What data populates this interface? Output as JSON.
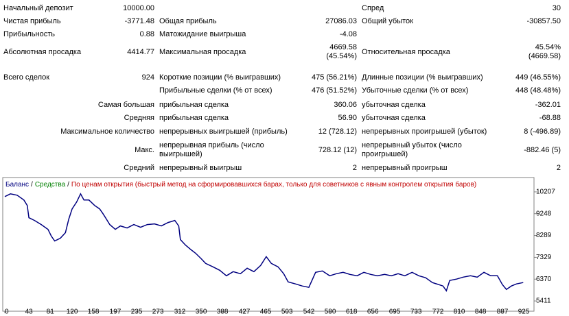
{
  "stats": {
    "rows": [
      {
        "l1": "Начальный депозит",
        "v1": "10000.00",
        "l3": "Спред",
        "v3": "30"
      },
      {
        "l1": "Чистая прибыль",
        "v1": "-3771.48",
        "l2": "Общая прибыль",
        "v2": "27086.03",
        "l3": "Общий убыток",
        "v3": "-30857.50"
      },
      {
        "l1": "Прибыльность",
        "v1": "0.88",
        "l2": "Матожидание выигрыша",
        "v2": "-4.08"
      },
      {
        "l1": "Абсолютная просадка",
        "v1": "4414.77",
        "l2": "Максимальная просадка",
        "v2": "4669.58\n(45.54%)",
        "l3": "Относительная просадка",
        "v3": "45.54%\n(4669.58)"
      },
      {
        "l1": "Всего сделок",
        "v1": "924",
        "l2": "Короткие позиции (% выигравших)",
        "v2": "475 (56.21%)",
        "l3": "Длинные позиции (% выигравших)",
        "v3": "449 (46.55%)"
      },
      {
        "l2": "Прибыльные сделки (% от всех)",
        "v2": "476 (51.52%)",
        "l3": "Убыточные сделки (% от всех)",
        "v3": "448 (48.48%)"
      },
      {
        "l1": "Самая большая",
        "l2": "прибыльная сделка",
        "v2": "360.06",
        "l3": "убыточная сделка",
        "v3": "-362.01"
      },
      {
        "l1": "Средняя",
        "l2": "прибыльная сделка",
        "v2": "56.90",
        "l3": "убыточная сделка",
        "v3": "-68.88"
      },
      {
        "l1": "Максимальное количество",
        "l2": "непрерывных выигрышей (прибыль)",
        "v2": "12 (728.12)",
        "l3": "непрерывных проигрышей (убыток)",
        "v3": "8 (-496.89)"
      },
      {
        "l1": "Макс.",
        "l2": "непрерывная прибыль (число выигрышей)",
        "v2": "728.12 (12)",
        "l3": "непрерывный убыток (число проигрышей)",
        "v3": "-882.46 (5)"
      },
      {
        "l1": "Средний",
        "l2": "непрерывный выигрыш",
        "v2": "2",
        "l3": "непрерывный проигрыш",
        "v3": "2"
      }
    ]
  },
  "chart_data": {
    "type": "line",
    "separator": "/",
    "equity_label": "Средства",
    "mode": "По ценам открытия (быстрый метод на сформировавшихся барах, только для советников с явным контролем открытия баров)",
    "x": [
      0,
      10,
      22,
      34,
      40,
      43,
      53,
      65,
      77,
      83,
      89,
      99,
      108,
      114,
      120,
      128,
      135,
      141,
      150,
      160,
      169,
      175,
      181,
      187,
      197,
      206,
      218,
      230,
      242,
      254,
      267,
      279,
      291,
      303,
      310,
      313,
      322,
      332,
      340,
      350,
      358,
      371,
      383,
      395,
      407,
      420,
      432,
      444,
      456,
      466,
      475,
      487,
      497,
      505,
      518,
      530,
      542,
      554,
      566,
      579,
      591,
      603,
      615,
      628,
      640,
      652,
      664,
      677,
      689,
      701,
      713,
      726,
      738,
      750,
      762,
      781,
      787,
      793,
      805,
      817,
      830,
      842,
      854,
      866,
      878,
      887,
      894,
      903,
      912,
      924
    ],
    "series": [
      {
        "name": "Баланс",
        "color": "#000080",
        "values": [
          10000,
          10120,
          10060,
          9850,
          9610,
          9070,
          8950,
          8770,
          8560,
          8260,
          8050,
          8170,
          8410,
          9010,
          9460,
          9760,
          10120,
          9850,
          9850,
          9610,
          9460,
          9250,
          9010,
          8770,
          8560,
          8710,
          8620,
          8770,
          8650,
          8770,
          8800,
          8710,
          8860,
          8950,
          8710,
          8110,
          7870,
          7660,
          7510,
          7270,
          7060,
          6910,
          6760,
          6520,
          6700,
          6610,
          6850,
          6700,
          6970,
          7360,
          7060,
          6910,
          6610,
          6250,
          6160,
          6070,
          6010,
          6670,
          6730,
          6520,
          6610,
          6670,
          6580,
          6520,
          6670,
          6580,
          6520,
          6580,
          6520,
          6610,
          6520,
          6670,
          6520,
          6430,
          6220,
          6070,
          5860,
          6310,
          6370,
          6460,
          6520,
          6460,
          6670,
          6520,
          6520,
          6130,
          5920,
          6070,
          6160,
          6220
        ]
      }
    ],
    "xlim": [
      0,
      942
    ],
    "ylim": [
      5021,
      10747
    ],
    "xticks": [
      0,
      43,
      81,
      120,
      158,
      197,
      235,
      273,
      312,
      350,
      388,
      427,
      465,
      503,
      542,
      580,
      618,
      656,
      695,
      733,
      772,
      810,
      848,
      887,
      925
    ],
    "yticks": [
      10207,
      9248,
      8289,
      7329,
      6370,
      5411
    ]
  }
}
